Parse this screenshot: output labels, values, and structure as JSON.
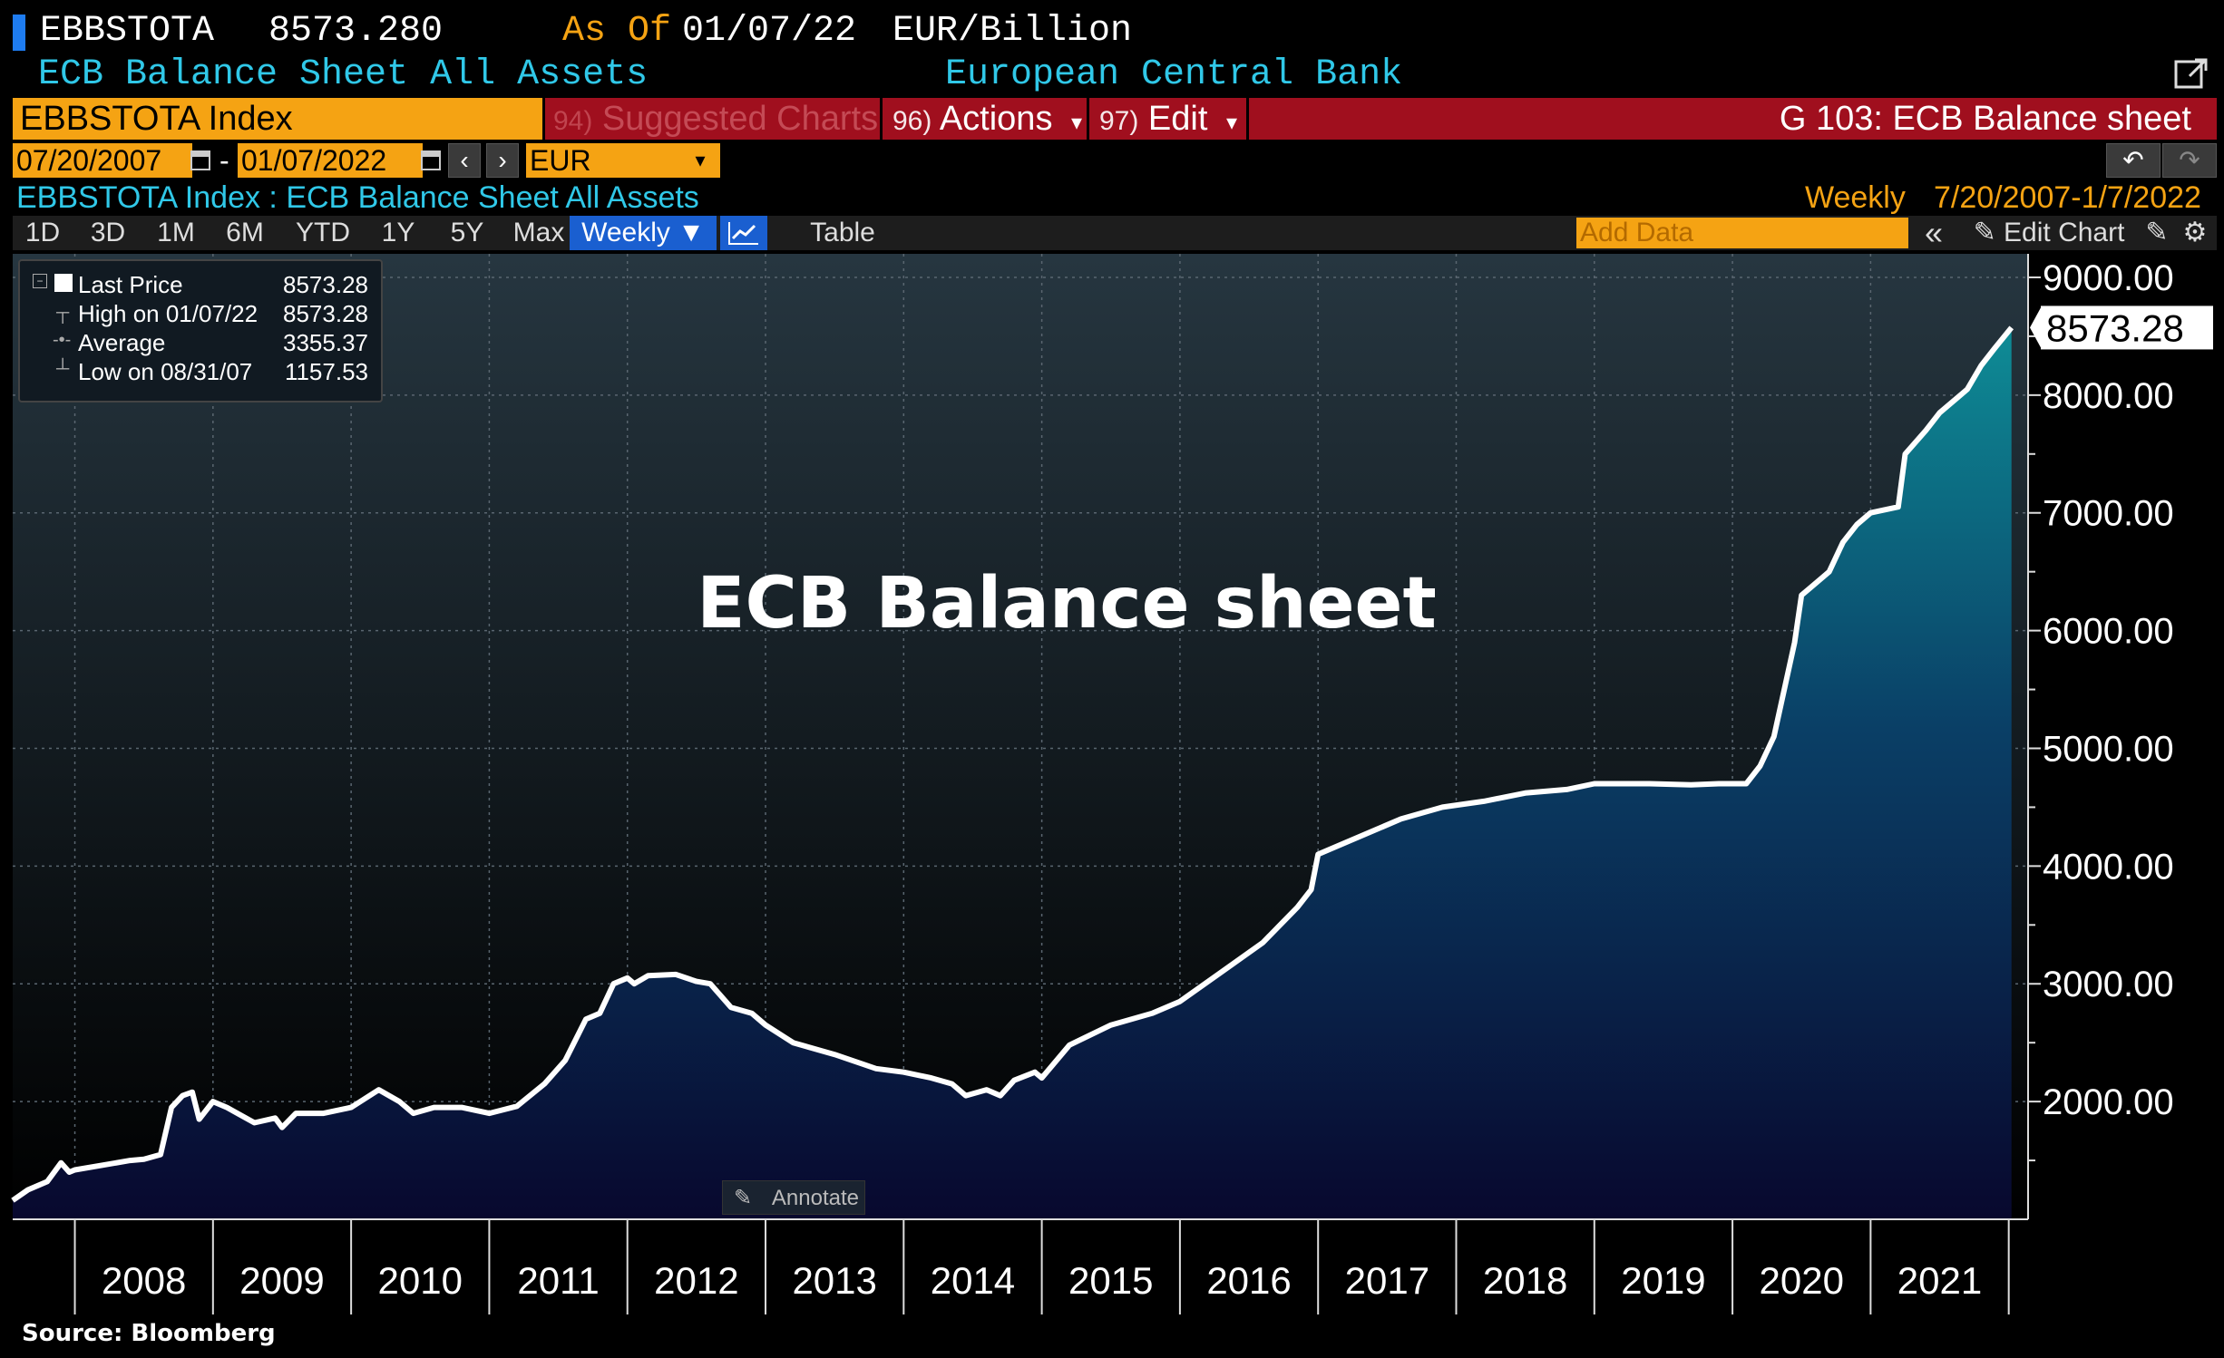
{
  "header": {
    "ticker": "EBBSTOTA",
    "last_value": "8573.280",
    "as_of_label": "As Of",
    "as_of_date": "01/07/22",
    "units": "EUR/Billion",
    "description": "ECB Balance Sheet All Assets",
    "source_name": "European Central Bank"
  },
  "command_bar": {
    "security": "EBBSTOTA Index",
    "suggested_num": "94)",
    "suggested": "Suggested Charts",
    "actions_num": "96)",
    "actions": "Actions",
    "edit_num": "97)",
    "edit": "Edit",
    "page_title": "G 103: ECB Balance sheet",
    "dropdown_glyph": "▾"
  },
  "range_bar": {
    "start_date": "07/20/2007",
    "dash": "-",
    "end_date": "01/07/2022",
    "prev": "‹",
    "next": "›",
    "currency": "EUR",
    "undo": "↶",
    "redo": "↷"
  },
  "subtitle": {
    "left": "EBBSTOTA Index : ECB Balance Sheet All Assets",
    "frequency": "Weekly",
    "range": "7/20/2007-1/7/2022"
  },
  "tabs": {
    "items": [
      "1D",
      "3D",
      "1M",
      "6M",
      "YTD",
      "1Y",
      "5Y",
      "Max"
    ],
    "period": "Weekly ▼",
    "table": "Table",
    "add_data_placeholder": "Add Data",
    "collapse": "«",
    "edit_chart": "Edit Chart",
    "edit_glyph": "✎",
    "settings": "⚙"
  },
  "legend": {
    "last_label": "Last Price",
    "last_value": "8573.28",
    "high_label": "High on 01/07/22",
    "high_value": "8573.28",
    "avg_label": "Average",
    "avg_value": "3355.37",
    "low_label": "Low on 08/31/07",
    "low_value": "1157.53"
  },
  "annotate_label": "Annotate",
  "source": "Source: Bloomberg",
  "colors": {
    "accent_orange": "#f5a313",
    "command_red": "#a00f1e",
    "cyan_text": "#30c8e8",
    "fill_top": "#0e8c96",
    "fill_bottom": "#08082e"
  },
  "chart_data": {
    "type": "area",
    "title": "ECB Balance sheet",
    "xlabel": "",
    "ylabel": "",
    "ylim": [
      1000,
      9200
    ],
    "x_ticks": [
      "2008",
      "2009",
      "2010",
      "2011",
      "2012",
      "2013",
      "2014",
      "2015",
      "2016",
      "2017",
      "2018",
      "2019",
      "2020",
      "2021"
    ],
    "y_ticks": [
      "9000.00",
      "8000.00",
      "7000.00",
      "6000.00",
      "5000.00",
      "4000.00",
      "3000.00",
      "2000.00"
    ],
    "last_value_label": "8573.28",
    "grid": true,
    "series": [
      {
        "x": [
          2007.55,
          2007.66,
          2007.8,
          2007.9,
          2007.96,
          2008.0,
          2008.2,
          2008.4,
          2008.5,
          2008.62,
          2008.7,
          2008.78,
          2008.85,
          2008.9,
          2009.0,
          2009.1,
          2009.3,
          2009.45,
          2009.5,
          2009.6,
          2009.8,
          2010.0,
          2010.2,
          2010.35,
          2010.45,
          2010.6,
          2010.8,
          2011.0,
          2011.2,
          2011.4,
          2011.55,
          2011.7,
          2011.8,
          2011.9,
          2012.0,
          2012.05,
          2012.15,
          2012.35,
          2012.5,
          2012.6,
          2012.75,
          2012.9,
          2013.0,
          2013.2,
          2013.5,
          2013.8,
          2014.0,
          2014.2,
          2014.35,
          2014.45,
          2014.6,
          2014.7,
          2014.8,
          2014.95,
          2015.0,
          2015.2,
          2015.5,
          2015.8,
          2016.0,
          2016.3,
          2016.6,
          2016.85,
          2016.95,
          2017.0,
          2017.3,
          2017.6,
          2017.9,
          2018.2,
          2018.5,
          2018.8,
          2019.0,
          2019.4,
          2019.7,
          2019.9,
          2020.1,
          2020.2,
          2020.3,
          2020.45,
          2020.5,
          2020.55,
          2020.7,
          2020.8,
          2020.9,
          2021.0,
          2021.2,
          2021.25,
          2021.4,
          2021.5,
          2021.7,
          2021.8,
          2021.9,
          2022.02
        ],
        "values": [
          1160,
          1250,
          1320,
          1480,
          1400,
          1420,
          1460,
          1500,
          1510,
          1550,
          1950,
          2050,
          2080,
          1850,
          2000,
          1950,
          1820,
          1860,
          1780,
          1900,
          1900,
          1950,
          2100,
          2000,
          1900,
          1950,
          1950,
          1900,
          1960,
          2150,
          2350,
          2700,
          2750,
          3000,
          3050,
          3000,
          3070,
          3080,
          3020,
          3000,
          2800,
          2750,
          2650,
          2500,
          2400,
          2280,
          2250,
          2200,
          2150,
          2050,
          2100,
          2050,
          2180,
          2250,
          2200,
          2480,
          2650,
          2750,
          2850,
          3100,
          3350,
          3650,
          3800,
          4100,
          4250,
          4400,
          4500,
          4550,
          4620,
          4650,
          4700,
          4700,
          4690,
          4700,
          4700,
          4850,
          5100,
          5900,
          6300,
          6350,
          6500,
          6750,
          6900,
          7000,
          7050,
          7500,
          7700,
          7850,
          8050,
          8250,
          8400,
          8573
        ]
      }
    ]
  }
}
